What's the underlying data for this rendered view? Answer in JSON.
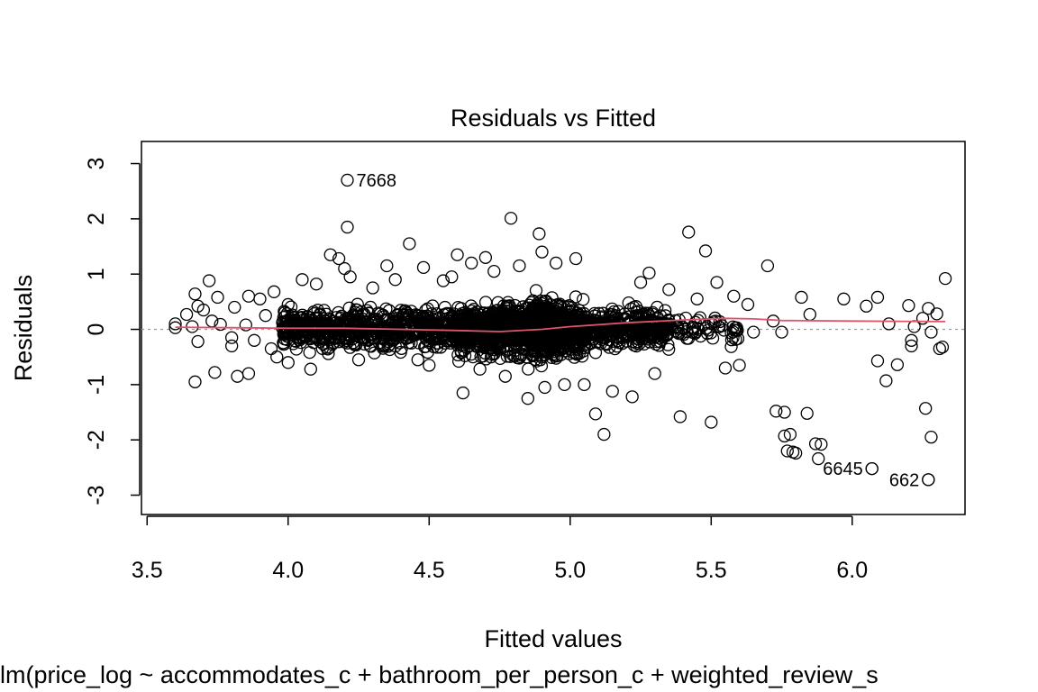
{
  "chart_data": {
    "type": "scatter",
    "title": "Residuals vs Fitted",
    "xlabel": "Fitted values",
    "ylabel": "Residuals",
    "subtitle": "lm(price_log ~ accommodates_c + bathroom_per_person_c + weighted_review_s",
    "xlim": [
      3.48,
      6.4
    ],
    "ylim": [
      -3.35,
      3.4
    ],
    "x_ticks": [
      3.5,
      4.0,
      4.5,
      5.0,
      5.5,
      6.0
    ],
    "x_tick_labels": [
      "3.5",
      "4.0",
      "4.5",
      "5.0",
      "5.5",
      "6.0"
    ],
    "y_ticks": [
      -3,
      -2,
      -1,
      0,
      1,
      2,
      3
    ],
    "y_tick_labels": [
      "-3",
      "-2",
      "-1",
      "0",
      "1",
      "2",
      "3"
    ],
    "reference_line": {
      "y": 0,
      "style": "dotted",
      "color": "#999999"
    },
    "smoother_color": "#DF536B",
    "smoother": [
      [
        3.6,
        0.04
      ],
      [
        3.8,
        0.03
      ],
      [
        4.0,
        0.02
      ],
      [
        4.2,
        0.02
      ],
      [
        4.4,
        0.0
      ],
      [
        4.6,
        -0.02
      ],
      [
        4.75,
        -0.04
      ],
      [
        4.9,
        0.0
      ],
      [
        5.0,
        0.05
      ],
      [
        5.2,
        0.12
      ],
      [
        5.4,
        0.17
      ],
      [
        5.55,
        0.2
      ],
      [
        5.65,
        0.19
      ],
      [
        5.75,
        0.16
      ],
      [
        6.0,
        0.15
      ],
      [
        6.33,
        0.14
      ]
    ],
    "outliers": [
      {
        "x": 4.21,
        "y": 2.7,
        "label": "7668",
        "position": "right"
      },
      {
        "x": 6.07,
        "y": -2.52,
        "label": "6645",
        "position": "left"
      },
      {
        "x": 6.27,
        "y": -2.72,
        "label": "662",
        "position": "left"
      }
    ],
    "points": [
      [
        3.6,
        0.1
      ],
      [
        3.6,
        0.03
      ],
      [
        3.64,
        0.27
      ],
      [
        3.66,
        0.05
      ],
      [
        3.67,
        -0.95
      ],
      [
        3.67,
        0.64
      ],
      [
        3.68,
        0.42
      ],
      [
        3.68,
        -0.22
      ],
      [
        3.7,
        0.35
      ],
      [
        3.72,
        0.88
      ],
      [
        3.73,
        0.15
      ],
      [
        3.74,
        -0.78
      ],
      [
        3.75,
        0.58
      ],
      [
        3.76,
        0.09
      ],
      [
        3.8,
        -0.15
      ],
      [
        3.8,
        -0.3
      ],
      [
        3.81,
        0.4
      ],
      [
        3.82,
        -0.85
      ],
      [
        3.85,
        0.08
      ],
      [
        3.86,
        -0.8
      ],
      [
        3.86,
        0.6
      ],
      [
        3.88,
        -0.2
      ],
      [
        3.9,
        0.55
      ],
      [
        3.92,
        0.25
      ],
      [
        3.94,
        -0.35
      ],
      [
        3.95,
        0.68
      ],
      [
        3.96,
        -0.5
      ],
      [
        3.98,
        0.12
      ],
      [
        4.0,
        -0.6
      ],
      [
        4.0,
        0.45
      ],
      [
        4.05,
        0.9
      ],
      [
        4.08,
        -0.72
      ],
      [
        4.1,
        0.82
      ],
      [
        4.15,
        1.35
      ],
      [
        4.18,
        1.28
      ],
      [
        4.2,
        1.1
      ],
      [
        4.21,
        1.85
      ],
      [
        4.22,
        0.95
      ],
      [
        4.25,
        -0.55
      ],
      [
        4.3,
        0.75
      ],
      [
        4.35,
        1.15
      ],
      [
        4.38,
        0.9
      ],
      [
        4.43,
        1.55
      ],
      [
        4.46,
        -0.55
      ],
      [
        4.48,
        1.12
      ],
      [
        4.5,
        -0.65
      ],
      [
        4.55,
        0.88
      ],
      [
        4.58,
        0.95
      ],
      [
        4.6,
        1.35
      ],
      [
        4.62,
        -1.15
      ],
      [
        4.65,
        1.2
      ],
      [
        4.68,
        -0.72
      ],
      [
        4.7,
        1.3
      ],
      [
        4.73,
        1.05
      ],
      [
        4.77,
        -0.85
      ],
      [
        4.79,
        2.01
      ],
      [
        4.82,
        1.15
      ],
      [
        4.85,
        -1.25
      ],
      [
        4.89,
        1.73
      ],
      [
        4.9,
        1.4
      ],
      [
        4.91,
        -1.05
      ],
      [
        4.95,
        1.2
      ],
      [
        4.98,
        -1.0
      ],
      [
        5.02,
        1.28
      ],
      [
        5.05,
        -1.0
      ],
      [
        5.09,
        -1.53
      ],
      [
        5.12,
        -1.9
      ],
      [
        5.15,
        -1.12
      ],
      [
        5.22,
        -1.22
      ],
      [
        5.25,
        0.85
      ],
      [
        5.28,
        1.02
      ],
      [
        5.3,
        -0.8
      ],
      [
        5.35,
        0.72
      ],
      [
        5.39,
        -1.58
      ],
      [
        5.42,
        1.76
      ],
      [
        5.45,
        0.55
      ],
      [
        5.48,
        1.42
      ],
      [
        5.5,
        -1.68
      ],
      [
        5.52,
        0.85
      ],
      [
        5.55,
        -0.7
      ],
      [
        5.58,
        0.6
      ],
      [
        5.6,
        -0.65
      ],
      [
        5.63,
        0.45
      ],
      [
        5.65,
        -0.05
      ],
      [
        5.7,
        1.15
      ],
      [
        5.72,
        0.15
      ],
      [
        5.73,
        -1.48
      ],
      [
        5.75,
        -0.05
      ],
      [
        5.76,
        -1.93
      ],
      [
        5.76,
        -1.5
      ],
      [
        5.77,
        -2.2
      ],
      [
        5.78,
        -1.9
      ],
      [
        5.79,
        -2.22
      ],
      [
        5.8,
        -2.24
      ],
      [
        5.82,
        0.58
      ],
      [
        5.84,
        -1.52
      ],
      [
        5.85,
        0.27
      ],
      [
        5.87,
        -2.07
      ],
      [
        5.88,
        -2.34
      ],
      [
        5.89,
        -2.08
      ],
      [
        5.97,
        0.55
      ],
      [
        6.05,
        0.42
      ],
      [
        6.07,
        -2.52
      ],
      [
        6.09,
        0.58
      ],
      [
        6.09,
        -0.57
      ],
      [
        6.12,
        -0.93
      ],
      [
        6.13,
        0.1
      ],
      [
        6.16,
        -0.64
      ],
      [
        6.2,
        0.43
      ],
      [
        6.21,
        -0.3
      ],
      [
        6.21,
        -0.2
      ],
      [
        6.22,
        0.05
      ],
      [
        6.26,
        -1.43
      ],
      [
        6.27,
        -2.72
      ],
      [
        6.27,
        0.38
      ],
      [
        6.28,
        -1.95
      ],
      [
        6.3,
        0.28
      ],
      [
        6.31,
        -0.35
      ],
      [
        6.32,
        -0.32
      ],
      [
        6.33,
        0.92
      ],
      [
        6.25,
        0.2
      ],
      [
        6.28,
        -0.05
      ]
    ],
    "dense_regions": [
      {
        "x": [
          3.98,
          5.35
        ],
        "y": [
          -0.7,
          0.75
        ],
        "count": 1400
      },
      {
        "x": [
          4.6,
          5.05
        ],
        "y": [
          -0.95,
          0.95
        ],
        "count": 700
      },
      {
        "x": [
          4.85,
          4.96
        ],
        "y": [
          -1.05,
          1.05
        ],
        "count": 250
      },
      {
        "x": [
          5.35,
          5.6
        ],
        "y": [
          -0.45,
          0.45
        ],
        "count": 60
      }
    ]
  }
}
